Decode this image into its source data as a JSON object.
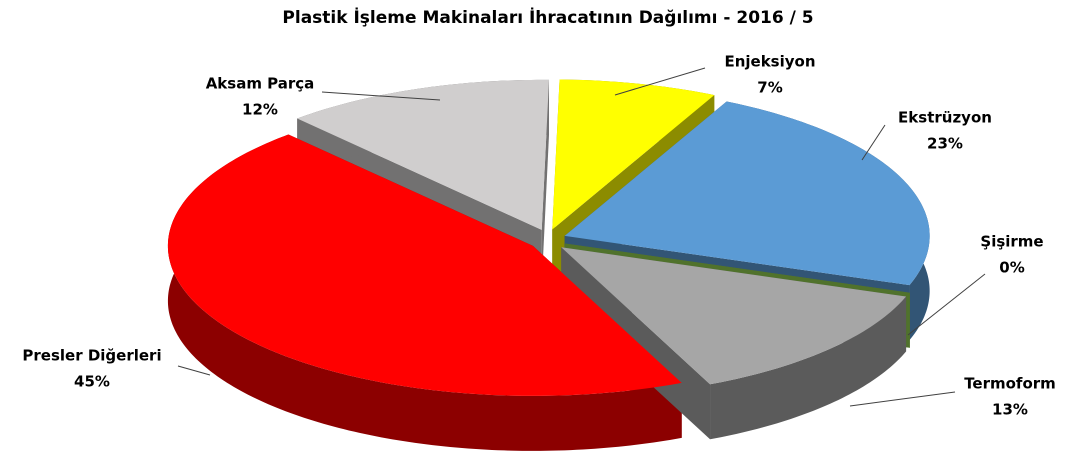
{
  "chart_data": {
    "type": "pie",
    "title": "Plastik İşleme Makinaları İhracatının Dağılımı - 2016 / 5",
    "categories": [
      "Enjeksiyon",
      "Ekstrüzyon",
      "Şişirme",
      "Termoform",
      "Presler Diğerleri",
      "Aksam Parça"
    ],
    "values": [
      7,
      23,
      0,
      13,
      45,
      12
    ],
    "value_labels": [
      "7%",
      "23%",
      "0%",
      "13%",
      "45%",
      "12%"
    ],
    "colors": [
      "#ffff00",
      "#5b9bd5",
      "#92d050",
      "#a6a6a6",
      "#ff0000",
      "#d0cece"
    ]
  }
}
